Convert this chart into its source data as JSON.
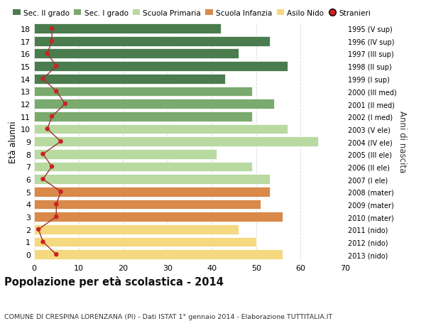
{
  "ages": [
    18,
    17,
    16,
    15,
    14,
    13,
    12,
    11,
    10,
    9,
    8,
    7,
    6,
    5,
    4,
    3,
    2,
    1,
    0
  ],
  "years": [
    "1995 (V sup)",
    "1996 (IV sup)",
    "1997 (III sup)",
    "1998 (II sup)",
    "1999 (I sup)",
    "2000 (III med)",
    "2001 (II med)",
    "2002 (I med)",
    "2003 (V ele)",
    "2004 (IV ele)",
    "2005 (III ele)",
    "2006 (II ele)",
    "2007 (I ele)",
    "2008 (mater)",
    "2009 (mater)",
    "2010 (mater)",
    "2011 (nido)",
    "2012 (nido)",
    "2013 (nido)"
  ],
  "bar_values": [
    42,
    53,
    46,
    57,
    43,
    49,
    54,
    49,
    57,
    64,
    41,
    49,
    53,
    53,
    51,
    56,
    46,
    50,
    56
  ],
  "bar_colors": [
    "#4a7c4e",
    "#4a7c4e",
    "#4a7c4e",
    "#4a7c4e",
    "#4a7c4e",
    "#7aaa6e",
    "#7aaa6e",
    "#7aaa6e",
    "#b8d9a0",
    "#b8d9a0",
    "#b8d9a0",
    "#b8d9a0",
    "#b8d9a0",
    "#d9894a",
    "#d9894a",
    "#d9894a",
    "#f5d980",
    "#f5d980",
    "#f5d980"
  ],
  "stranieri": [
    4,
    4,
    3,
    5,
    2,
    5,
    7,
    4,
    3,
    6,
    2,
    4,
    2,
    6,
    5,
    5,
    1,
    2,
    5
  ],
  "legend_labels": [
    "Sec. II grado",
    "Sec. I grado",
    "Scuola Primaria",
    "Scuola Infanzia",
    "Asilo Nido",
    "Stranieri"
  ],
  "legend_colors": [
    "#4a7c4e",
    "#7aaa6e",
    "#b8d9a0",
    "#d9894a",
    "#f5d980",
    "#cc2222"
  ],
  "title": "Popolazione per età scolastica - 2014",
  "subtitle": "COMUNE DI CRESPINA LORENZANA (PI) - Dati ISTAT 1° gennaio 2014 - Elaborazione TUTTITALIA.IT",
  "ylabel": "Età alunni",
  "right_label": "Anni di nascita",
  "xlim": [
    0,
    70
  ],
  "background_color": "#ffffff",
  "grid_color": "#dddddd",
  "stranieri_color": "#cc2222",
  "stranieri_line_color": "#993333"
}
